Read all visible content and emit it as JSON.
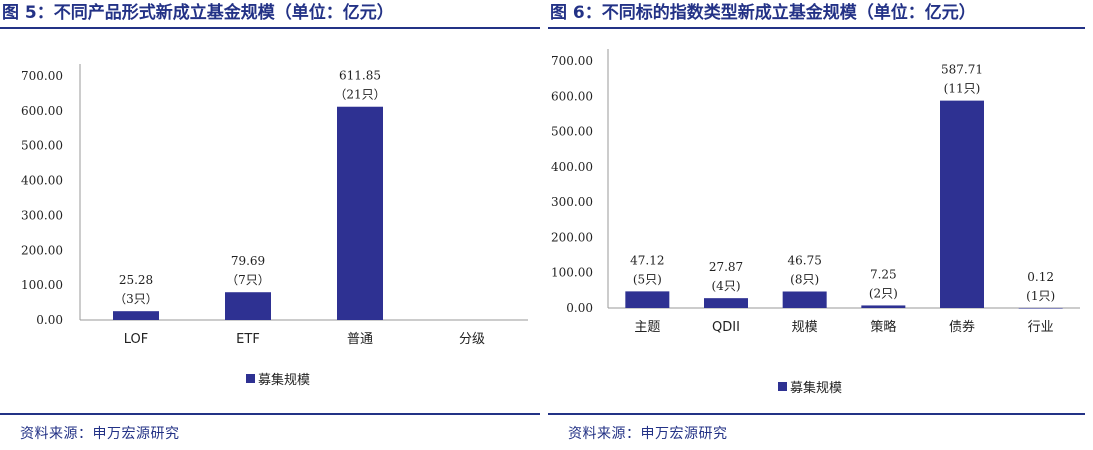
{
  "colors": {
    "accent": "#233286",
    "bar": "#2e3192"
  },
  "left": {
    "title": "图 5：不同产品形式新成立基金规模（单位：亿元）",
    "source": "资料来源：申万宏源研究",
    "legend": "募集规模",
    "chart_data": {
      "type": "bar",
      "categories": [
        "LOF",
        "ETF",
        "普通",
        "分级"
      ],
      "series": [
        {
          "name": "募集规模",
          "values": [
            25.28,
            79.69,
            611.85,
            null
          ]
        }
      ],
      "data_labels": [
        {
          "value": "25.28",
          "count": "（3只）"
        },
        {
          "value": "79.69",
          "count": "（7只）"
        },
        {
          "value": "611.85",
          "count": "（21只）"
        },
        null
      ],
      "y_ticks": [
        "0.00",
        "100.00",
        "200.00",
        "300.00",
        "400.00",
        "500.00",
        "600.00",
        "700.00"
      ],
      "ylim": [
        0,
        700
      ],
      "legend_position": "bottom"
    }
  },
  "right": {
    "title": "图 6：不同标的指数类型新成立基金规模（单位：亿元）",
    "source": "资料来源：申万宏源研究",
    "legend": "募集规模",
    "chart_data": {
      "type": "bar",
      "categories": [
        "主题",
        "QDII",
        "规模",
        "策略",
        "债券",
        "行业"
      ],
      "series": [
        {
          "name": "募集规模",
          "values": [
            47.12,
            27.87,
            46.75,
            7.25,
            587.71,
            0.12
          ]
        }
      ],
      "data_labels": [
        {
          "value": "47.12",
          "count": "(5只)"
        },
        {
          "value": "27.87",
          "count": "(4只)"
        },
        {
          "value": "46.75",
          "count": "(8只)"
        },
        {
          "value": "7.25",
          "count": "(2只)"
        },
        {
          "value": "587.71",
          "count": "(11只)"
        },
        {
          "value": "0.12",
          "count": "(1只)"
        }
      ],
      "y_ticks": [
        "0.00",
        "100.00",
        "200.00",
        "300.00",
        "400.00",
        "500.00",
        "600.00",
        "700.00"
      ],
      "ylim": [
        0,
        700
      ],
      "legend_position": "bottom"
    }
  }
}
